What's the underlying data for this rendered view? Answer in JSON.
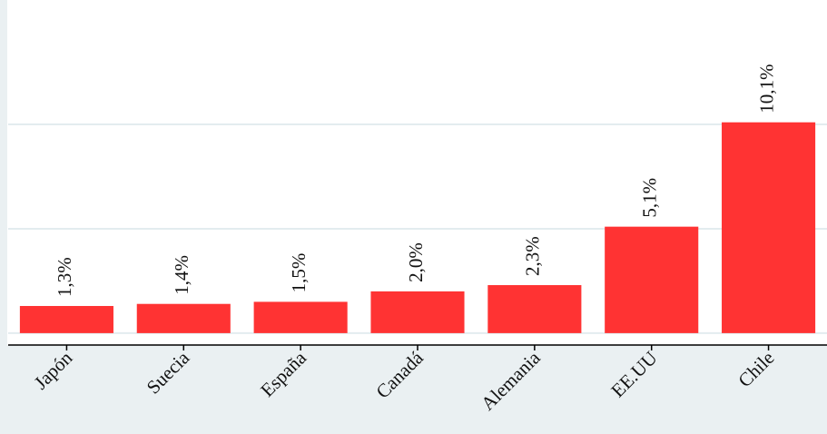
{
  "chart_data": {
    "type": "bar",
    "categories": [
      "Japón",
      "Suecia",
      "España",
      "Canadá",
      "Alemania",
      "EE.UU",
      "Chile"
    ],
    "values": [
      1.3,
      1.4,
      1.5,
      2.0,
      2.3,
      5.1,
      10.1
    ],
    "value_labels": [
      "1,3%",
      "1,4%",
      "1,5%",
      "2,0%",
      "2,3%",
      "5,1%",
      "10,1%"
    ],
    "color": "#ff3333",
    "ylim": [
      -0.57,
      15.96
    ],
    "yticks": [
      0,
      5,
      10
    ],
    "grid": true
  }
}
